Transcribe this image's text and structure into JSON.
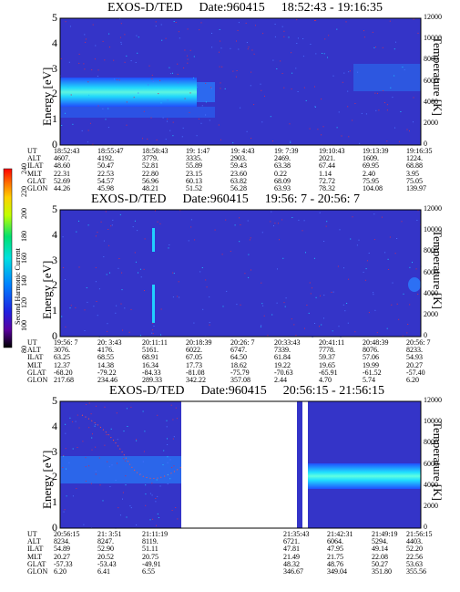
{
  "chart_data": [
    {
      "type": "heatmap",
      "title": "EXOS-D/TED",
      "date": "Date:960415",
      "time_range": "18:52:43 - 19:16:35",
      "ylabel": "Energy [eV]",
      "ylabel_right": "Temperature [K]",
      "ylim": [
        0,
        5
      ],
      "yticks": [
        "0",
        "1",
        "2",
        "3",
        "4",
        "5"
      ],
      "ylim_right": [
        0,
        12000
      ],
      "yticks_right": [
        "0",
        "2000",
        "4000",
        "6000",
        "8000",
        "10000",
        "12000"
      ],
      "table": {
        "row_labels": [
          "UT",
          "ALT",
          "ILAT",
          "MLT",
          "GLAT",
          "GLON"
        ],
        "columns": [
          [
            "18:52:43",
            "4607.",
            "48.60",
            "22.31",
            "52.69",
            "44.26"
          ],
          [
            "18:55:47",
            "4192.",
            "50.47",
            "22.53",
            "54.57",
            "45.98"
          ],
          [
            "18:58:43",
            "3779.",
            "52.81",
            "22.80",
            "56.96",
            "48.21"
          ],
          [
            "19: 1:47",
            "3335.",
            "55.89",
            "23.15",
            "60.13",
            "51.52"
          ],
          [
            "19: 4:43",
            "2903.",
            "59.43",
            "23.60",
            "63.82",
            "56.28"
          ],
          [
            "19: 7:39",
            "2469.",
            "63.38",
            "0.22",
            "68.09",
            "63.93"
          ],
          [
            "19:10:43",
            "2021.",
            "67.44",
            "1.14",
            "72.72",
            "78.32"
          ],
          [
            "19:13:39",
            "1609.",
            "69.95",
            "2.40",
            "75.95",
            "104.08"
          ],
          [
            "19:16:35",
            "1224.",
            "68.88",
            "3.95",
            "75.05",
            "139.97"
          ]
        ]
      }
    },
    {
      "type": "heatmap",
      "title": "EXOS-D/TED",
      "date": "Date:960415",
      "time_range": "19:56: 7 - 20:56: 7",
      "ylabel": "Energy [eV]",
      "ylabel_right": "Temperature [K]",
      "ylim": [
        0,
        5
      ],
      "yticks": [
        "0",
        "1",
        "2",
        "3",
        "4",
        "5"
      ],
      "ylim_right": [
        0,
        12000
      ],
      "yticks_right": [
        "0",
        "2000",
        "4000",
        "6000",
        "8000",
        "10000",
        "12000"
      ],
      "table": {
        "row_labels": [
          "UT",
          "ALT",
          "ILAT",
          "MLT",
          "GLAT",
          "GLON"
        ],
        "columns": [
          [
            "19:56: 7",
            "3076.",
            "63.25",
            "12.37",
            "-68.20",
            "217.68"
          ],
          [
            "20: 3:43",
            "4176.",
            "68.55",
            "14.38",
            "-79.22",
            "234.46"
          ],
          [
            "20:11:11",
            "5161.",
            "68.91",
            "16.34",
            "-84.33",
            "289.33"
          ],
          [
            "20:18:39",
            "6022.",
            "67.05",
            "17.73",
            "-81.08",
            "342.22"
          ],
          [
            "20:26: 7",
            "6747.",
            "64.50",
            "18.62",
            "-75.79",
            "357.08"
          ],
          [
            "20:33:43",
            "7339.",
            "61.84",
            "19.22",
            "-70.63",
            "2.44"
          ],
          [
            "20:41:11",
            "7778.",
            "59.37",
            "19.65",
            "-65.91",
            "4.70"
          ],
          [
            "20:48:39",
            "8076.",
            "57.06",
            "19.99",
            "-61.52",
            "5.74"
          ],
          [
            "20:56: 7",
            "8233.",
            "54.93",
            "20.27",
            "-57.40",
            "6.20"
          ]
        ]
      }
    },
    {
      "type": "heatmap",
      "title": "EXOS-D/TED",
      "date": "Date:960415",
      "time_range": "20:56:15 - 21:56:15",
      "ylabel": "Energy [eV]",
      "ylabel_right": "Temperature [K]",
      "ylim": [
        0,
        5
      ],
      "yticks": [
        "0",
        "1",
        "2",
        "3",
        "4",
        "5"
      ],
      "ylim_right": [
        0,
        12000
      ],
      "yticks_right": [
        "0",
        "2000",
        "4000",
        "6000",
        "8000",
        "10000",
        "12000"
      ],
      "table": {
        "row_labels": [
          "UT",
          "ALT",
          "ILAT",
          "MLT",
          "GLAT",
          "GLON"
        ],
        "columns_left": [
          [
            "20:56:15",
            "8234.",
            "54.89",
            "20.27",
            "-57.33",
            "6.20"
          ],
          [
            "21: 3:51",
            "8247.",
            "52.90",
            "20.52",
            "-53.43",
            "6.41"
          ],
          [
            "21:11:19",
            "8119.",
            "51.11",
            "20.75",
            "-49.91",
            "6.55"
          ]
        ],
        "columns_right": [
          [
            "21:35:43",
            "6721.",
            "47.81",
            "21.49",
            "48.32",
            "346.67"
          ],
          [
            "21:42:31",
            "6064.",
            "47.95",
            "21.75",
            "48.76",
            "349.04"
          ],
          [
            "21:49:19",
            "5294.",
            "49.14",
            "22.08",
            "50.27",
            "351.80"
          ],
          [
            "21:56:15",
            "4403.",
            "52.20",
            "22.56",
            "53.63",
            "355.56"
          ]
        ]
      }
    }
  ],
  "colorbar": {
    "label": "Second Harmonic Current",
    "ticks": [
      "80",
      "100",
      "120",
      "140",
      "160",
      "180",
      "200",
      "220",
      "240"
    ],
    "colors": [
      "#000000",
      "#5a00a0",
      "#2020e0",
      "#0060ff",
      "#00a0ff",
      "#00e0e0",
      "#00e070",
      "#60ff00",
      "#e0ff00",
      "#ffd000",
      "#ff7000",
      "#ff0000"
    ]
  }
}
